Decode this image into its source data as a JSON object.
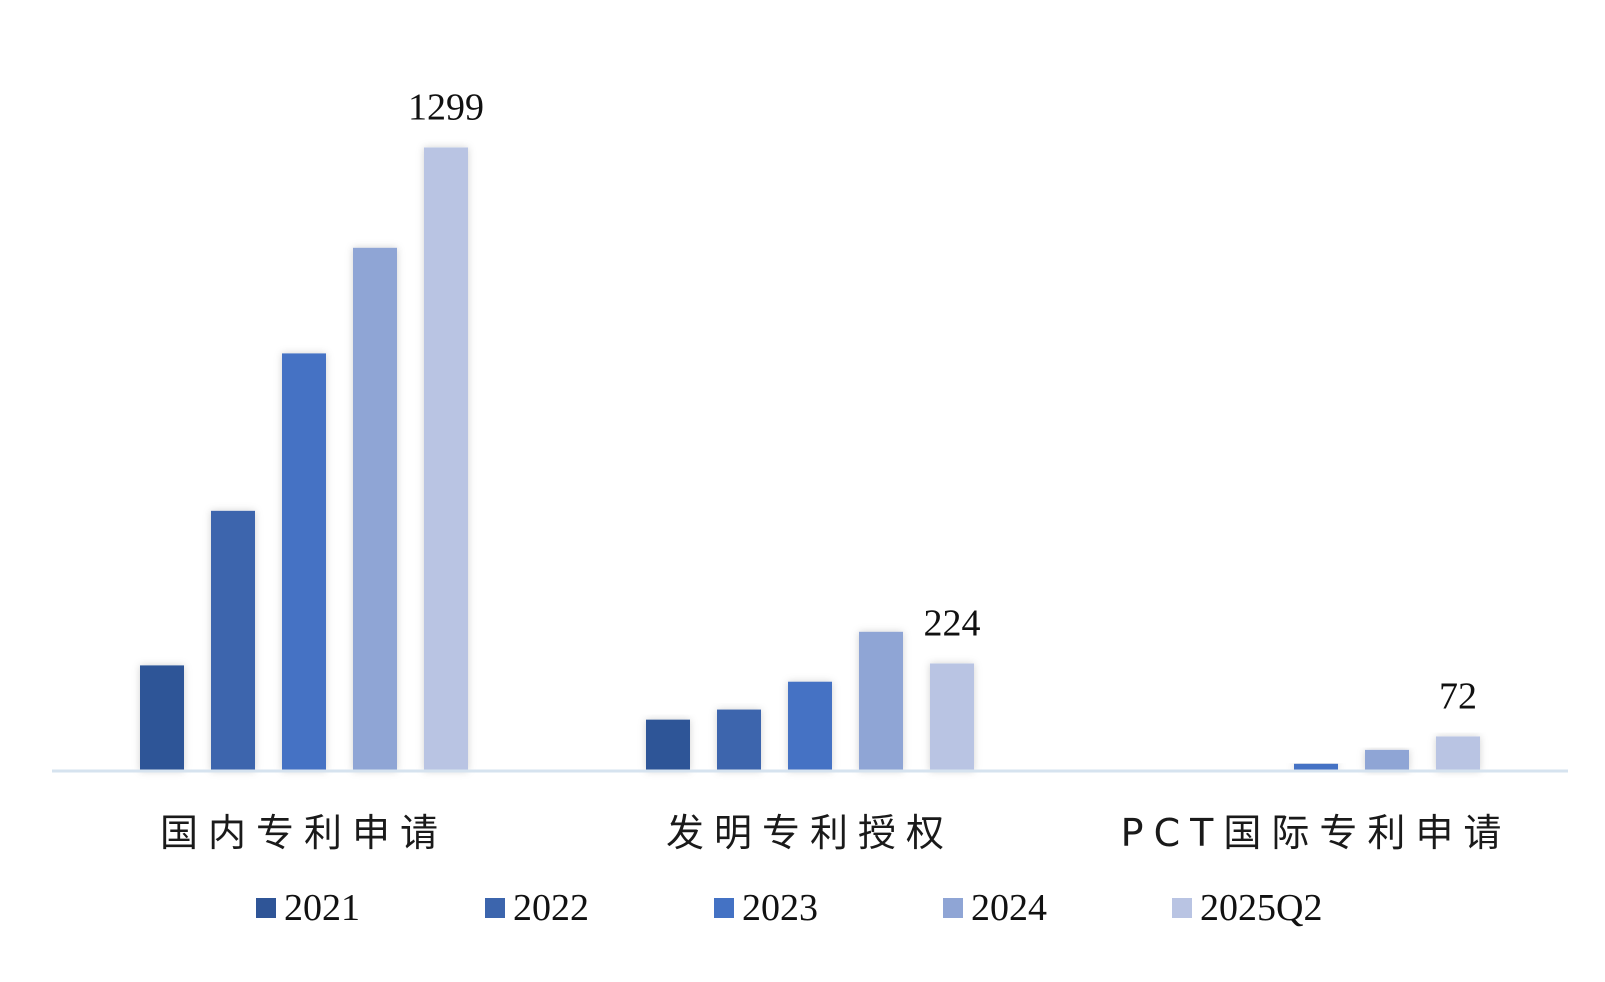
{
  "chart_data": {
    "type": "bar",
    "title": "",
    "xlabel": "",
    "ylabel": "",
    "ylim": [
      0,
      1450
    ],
    "grid": false,
    "legend_position": "bottom",
    "categories": [
      "国内专利申请",
      "发明专利授权",
      "PCT国际专利申请"
    ],
    "series": [
      {
        "name": "2021",
        "color": "#2f5597",
        "values": [
          220,
          107,
          0
        ]
      },
      {
        "name": "2022",
        "color": "#3c65ad",
        "values": [
          542,
          128,
          0
        ]
      },
      {
        "name": "2023",
        "color": "#4472c4",
        "values": [
          870,
          186,
          15
        ]
      },
      {
        "name": "2024",
        "color": "#8fa5d5",
        "values": [
          1090,
          290,
          44
        ]
      },
      {
        "name": "2025Q2",
        "color": "#b9c4e3",
        "values": [
          1299,
          224,
          72
        ]
      }
    ],
    "data_labels": [
      {
        "series": 4,
        "category": 0,
        "text": "1299"
      },
      {
        "series": 4,
        "category": 1,
        "text": "224"
      },
      {
        "series": 4,
        "category": 2,
        "text": "72"
      }
    ]
  }
}
